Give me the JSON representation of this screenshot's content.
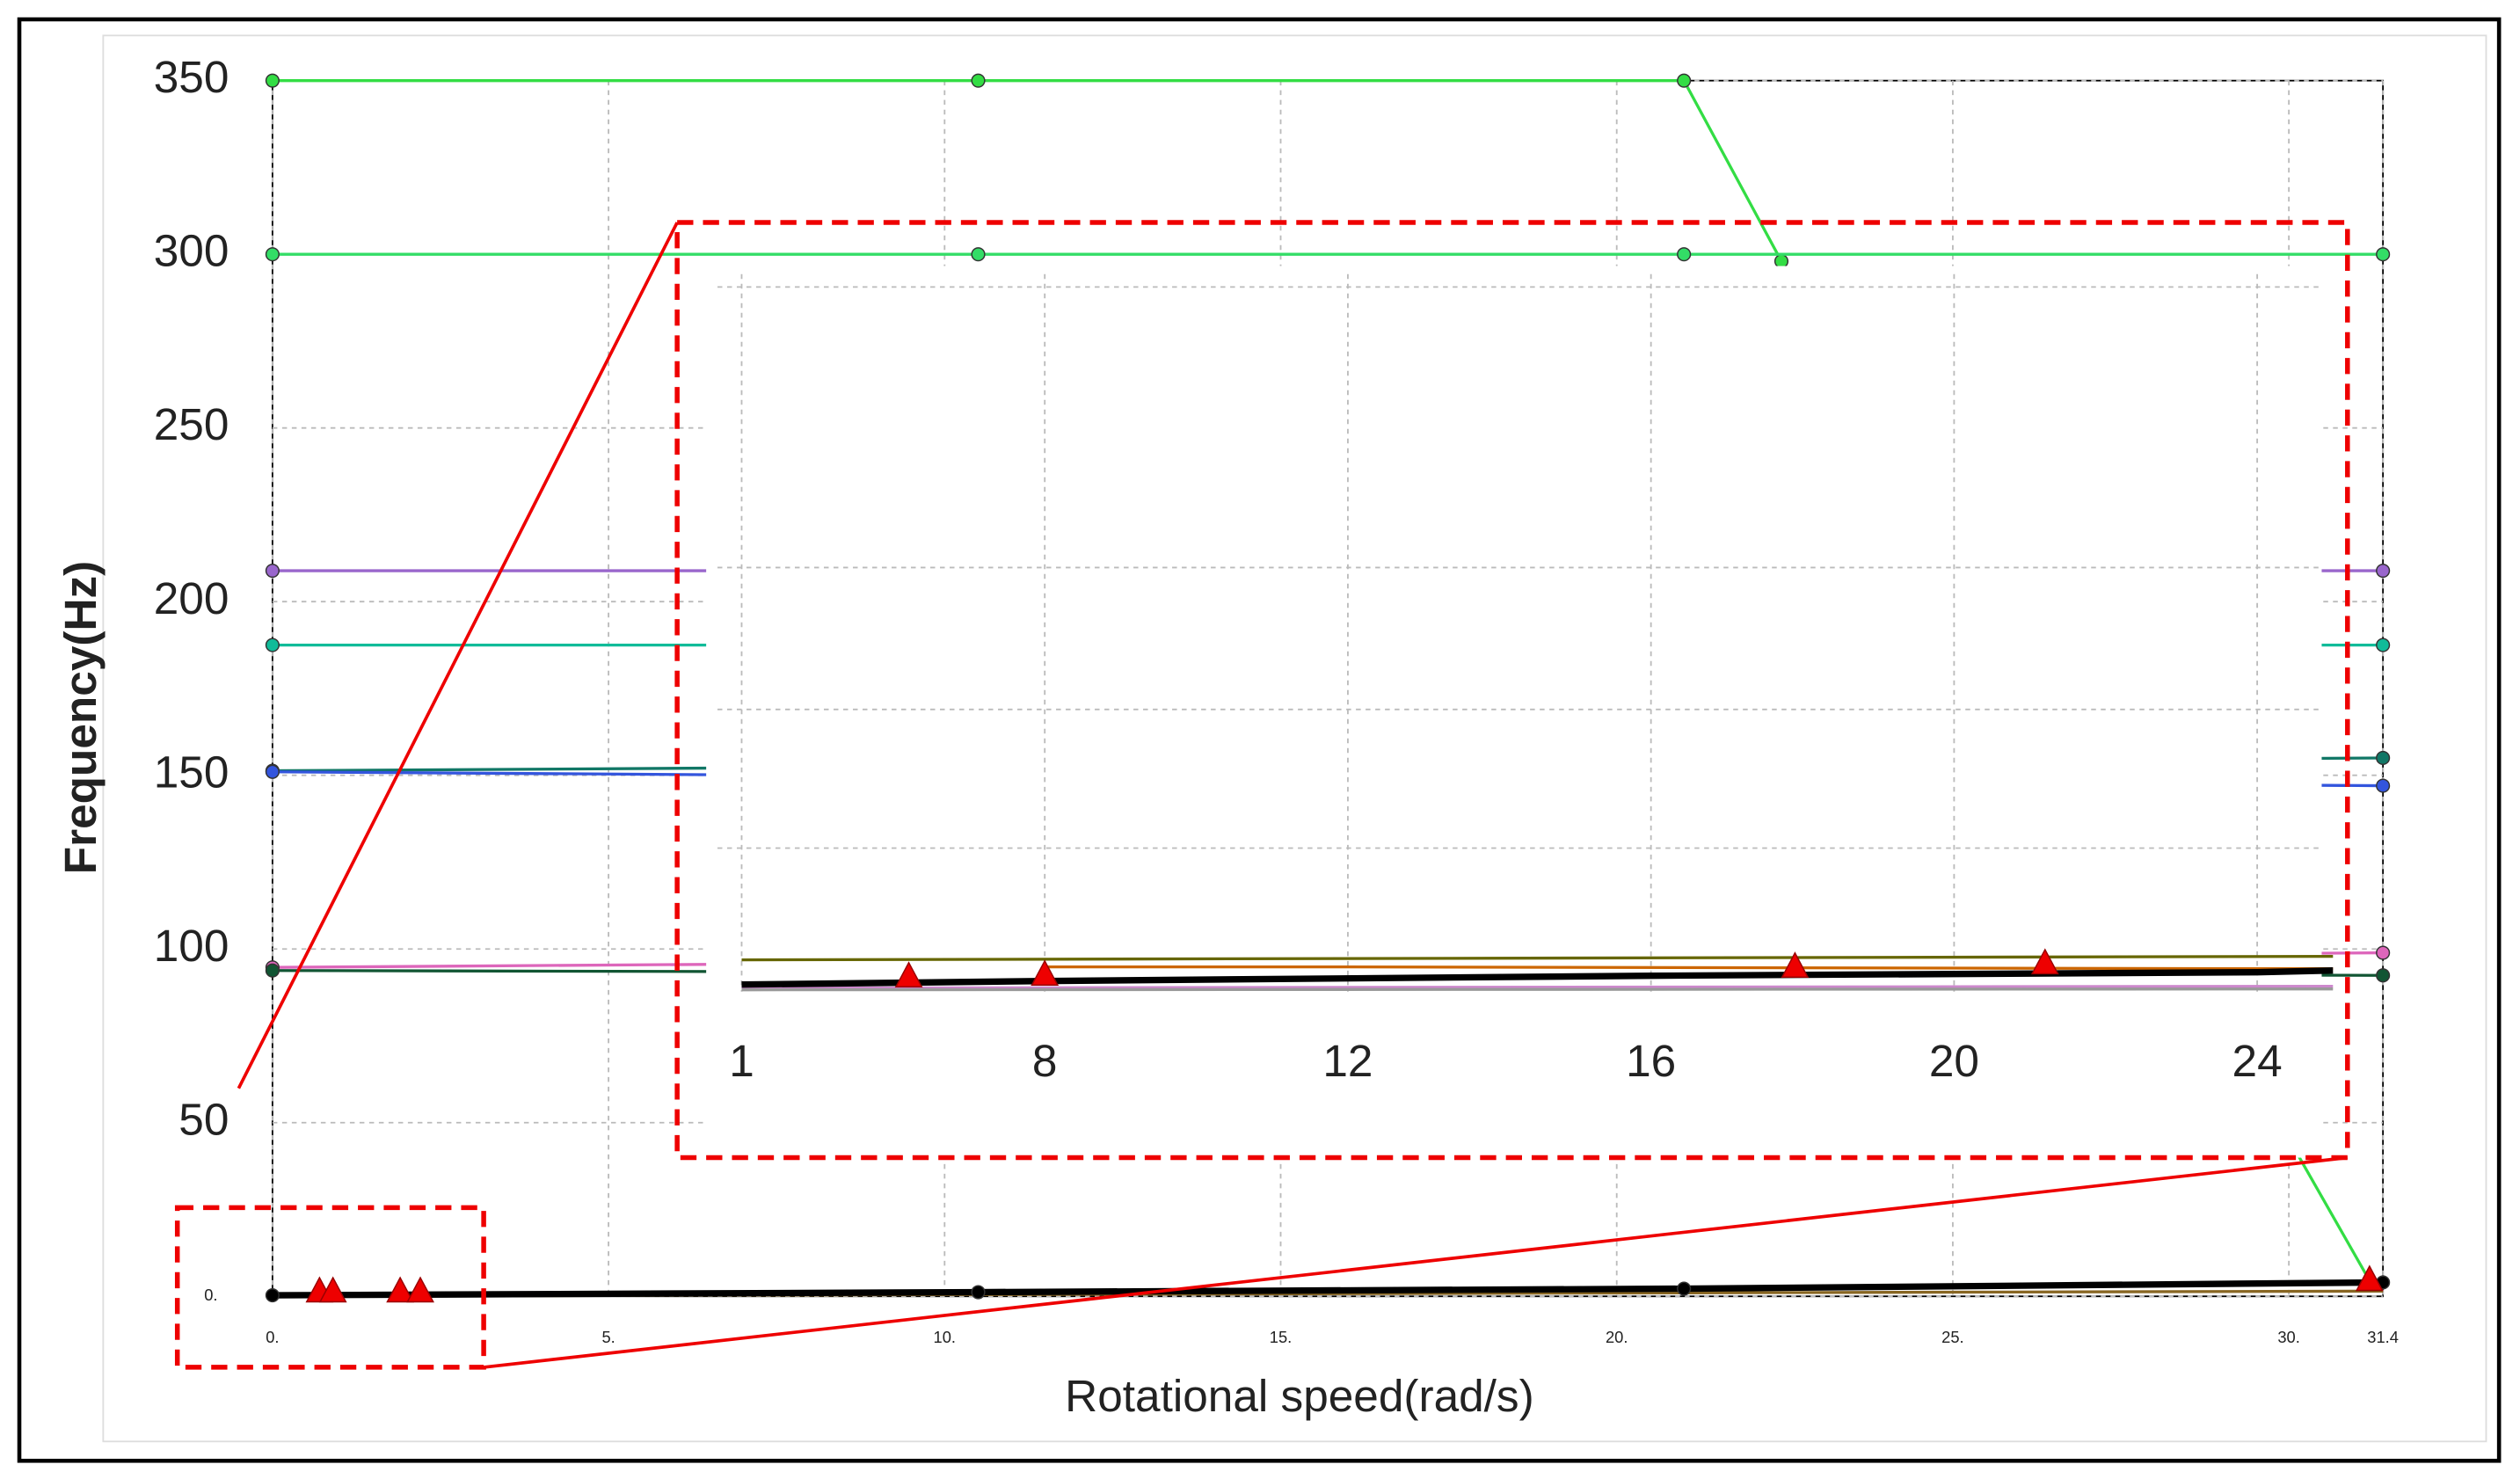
{
  "chart_data": [
    {
      "type": "line",
      "xlabel": "Rotational speed(rad/s)",
      "ylabel": "Frequency(Hz)",
      "xlim": [
        0,
        31.4
      ],
      "ylim": [
        0,
        350
      ],
      "xticks": [
        {
          "value": 0,
          "label": "0."
        },
        {
          "value": 5,
          "label": "5."
        },
        {
          "value": 10,
          "label": "10."
        },
        {
          "value": 15,
          "label": "15."
        },
        {
          "value": 20,
          "label": "20."
        },
        {
          "value": 25,
          "label": "25."
        },
        {
          "value": 30,
          "label": "30."
        },
        31.4
      ],
      "yticks": [
        {
          "value": 0,
          "label": "0."
        },
        50,
        100,
        150,
        200,
        250,
        300,
        350
      ],
      "grid": true,
      "series": [
        {
          "color": "#33dd44",
          "marker": "circle",
          "x": [
            0,
            10.5,
            21,
            22.45
          ],
          "values": [
            350,
            350,
            350,
            298
          ]
        },
        {
          "color": "#33dd66",
          "marker": "circle",
          "x": [
            0,
            10.5,
            21,
            31.4
          ],
          "values": [
            300,
            300,
            300,
            300
          ]
        },
        {
          "color": "#33dd44",
          "x": [
            29.72,
            31.21
          ],
          "values": [
            54.8,
            4.2
          ]
        },
        {
          "color": "#9966cc",
          "marker": "circle",
          "x": [
            0,
            31.4
          ],
          "values": [
            208.9,
            208.9
          ]
        },
        {
          "color": "#11bb99",
          "marker": "circle",
          "x": [
            0,
            31.4
          ],
          "values": [
            187.5,
            187.5
          ]
        },
        {
          "color": "#117766",
          "marker": "circle",
          "x": [
            0,
            31.4
          ],
          "values": [
            151.3,
            155
          ]
        },
        {
          "color": "#3355dd",
          "marker": "circle",
          "x": [
            0,
            31.4
          ],
          "values": [
            151,
            147
          ]
        },
        {
          "color": "#dd66bb",
          "marker": "circle",
          "x": [
            0,
            31.4
          ],
          "values": [
            94.7,
            98.9
          ]
        },
        {
          "color": "#115533",
          "marker": "circle",
          "x": [
            0,
            31.4
          ],
          "values": [
            93.8,
            92.4
          ]
        },
        {
          "color": "#886622",
          "x": [
            0,
            10.5,
            21,
            31.4
          ],
          "values": [
            0,
            0.5,
            1,
            1.5
          ]
        },
        {
          "color": "#000000",
          "line_width": 4,
          "marker": "circle",
          "x": [
            0,
            10.5,
            21,
            31.4
          ],
          "values": [
            0.3,
            1.2,
            2.2,
            4
          ]
        },
        {
          "color": "#ee0000",
          "line": false,
          "marker": "triangle",
          "x": [
            0.7,
            0.9,
            1.9,
            2.2,
            31.2
          ],
          "values": [
            1.2,
            1.2,
            1.2,
            1.2,
            4.5
          ]
        }
      ]
    },
    {
      "type": "line",
      "xticks": [
        1,
        8,
        12,
        16,
        20,
        24
      ],
      "ylim": [
        0,
        40
      ],
      "grid": true,
      "series": [
        {
          "color": "#cc88cc",
          "x": [
            1,
            25
          ],
          "values": [
            0.2,
            0.3
          ]
        },
        {
          "color": "#999999",
          "x": [
            1,
            25
          ],
          "values": [
            0.1,
            0.15
          ]
        },
        {
          "color": "#666600",
          "x": [
            1,
            25
          ],
          "values": [
            1.8,
            2.0
          ]
        },
        {
          "color": "#cc6600",
          "x": [
            8,
            12,
            24,
            25
          ],
          "values": [
            1.4,
            1.4,
            1.3,
            1.3
          ]
        },
        {
          "color": "#000000",
          "line_width": 4,
          "x": [
            1,
            8,
            16,
            24,
            25
          ],
          "values": [
            0.4,
            0.6,
            0.9,
            1.1,
            1.2
          ]
        },
        {
          "color": "#ee0000",
          "line": false,
          "marker": "triangle",
          "x": [
            4.86,
            8,
            17.9,
            21.2
          ],
          "values": [
            0.82,
            0.92,
            1.37,
            1.56
          ]
        }
      ]
    }
  ]
}
